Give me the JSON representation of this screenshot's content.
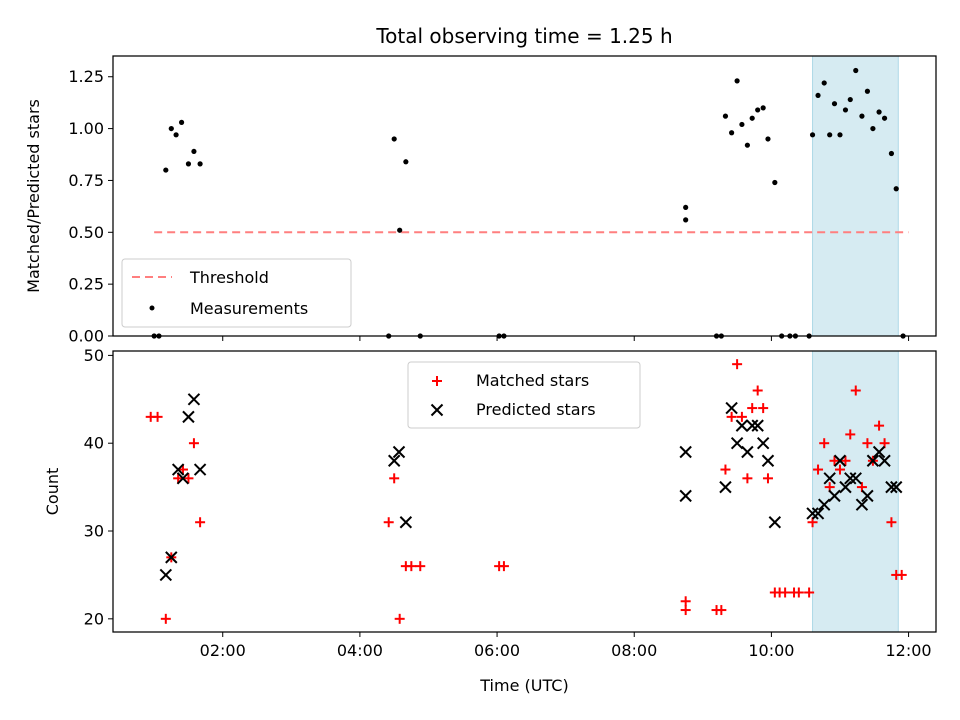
{
  "chart_data": [
    {
      "type": "scatter",
      "title": "Total observing time = 1.25 h",
      "xlabel": "",
      "ylabel": "Matched/Predicted stars",
      "xlim": [
        0.4,
        12.4
      ],
      "ylim": [
        0,
        1.35
      ],
      "yticks": [
        0.0,
        0.25,
        0.5,
        0.75,
        1.0,
        1.25
      ],
      "ytick_labels": [
        "0.00",
        "0.25",
        "0.50",
        "0.75",
        "1.00",
        "1.25"
      ],
      "shaded_span": [
        10.6,
        11.85
      ],
      "threshold": {
        "name": "Threshold",
        "value": 0.5,
        "x": [
          1.0,
          12.0
        ],
        "color": "#ff7f7f"
      },
      "series": [
        {
          "name": "Measurements",
          "color": "#000000",
          "points": [
            [
              1.0,
              0.0
            ],
            [
              1.07,
              0.0
            ],
            [
              1.17,
              0.8
            ],
            [
              1.25,
              1.0
            ],
            [
              1.32,
              0.97
            ],
            [
              1.4,
              1.03
            ],
            [
              1.5,
              0.83
            ],
            [
              1.58,
              0.89
            ],
            [
              1.67,
              0.83
            ],
            [
              4.42,
              0.0
            ],
            [
              4.5,
              0.95
            ],
            [
              4.58,
              0.51
            ],
            [
              4.67,
              0.84
            ],
            [
              4.88,
              0.0
            ],
            [
              6.03,
              0.0
            ],
            [
              6.1,
              0.0
            ],
            [
              8.75,
              0.62
            ],
            [
              8.75,
              0.56
            ],
            [
              9.2,
              0.0
            ],
            [
              9.27,
              0.0
            ],
            [
              9.33,
              1.06
            ],
            [
              9.42,
              0.98
            ],
            [
              9.5,
              1.23
            ],
            [
              9.57,
              1.02
            ],
            [
              9.65,
              0.92
            ],
            [
              9.72,
              1.05
            ],
            [
              9.8,
              1.09
            ],
            [
              9.88,
              1.1
            ],
            [
              9.95,
              0.95
            ],
            [
              10.05,
              0.74
            ],
            [
              10.15,
              0.0
            ],
            [
              10.27,
              0.0
            ],
            [
              10.35,
              0.0
            ],
            [
              10.55,
              0.0
            ],
            [
              10.6,
              0.97
            ],
            [
              10.68,
              1.16
            ],
            [
              10.77,
              1.22
            ],
            [
              10.85,
              0.97
            ],
            [
              10.92,
              1.12
            ],
            [
              11.0,
              0.97
            ],
            [
              11.08,
              1.09
            ],
            [
              11.15,
              1.14
            ],
            [
              11.23,
              1.28
            ],
            [
              11.32,
              1.06
            ],
            [
              11.4,
              1.18
            ],
            [
              11.48,
              1.0
            ],
            [
              11.57,
              1.08
            ],
            [
              11.65,
              1.05
            ],
            [
              11.75,
              0.88
            ],
            [
              11.82,
              0.71
            ],
            [
              11.92,
              0.0
            ]
          ]
        }
      ],
      "legend": {
        "placement": "lower-left"
      }
    },
    {
      "type": "scatter",
      "title": "",
      "xlabel": "Time (UTC)",
      "ylabel": "Count",
      "xlim": [
        0.4,
        12.4
      ],
      "ylim": [
        18.5,
        50.5
      ],
      "xticks": [
        2,
        4,
        6,
        8,
        10,
        12
      ],
      "xtick_labels": [
        "02:00",
        "04:00",
        "06:00",
        "08:00",
        "10:00",
        "12:00"
      ],
      "yticks": [
        20,
        30,
        40,
        50
      ],
      "ytick_labels": [
        "20",
        "30",
        "40",
        "50"
      ],
      "shaded_span": [
        10.6,
        11.85
      ],
      "series": [
        {
          "name": "Matched stars",
          "marker": "plus",
          "color": "#ff0000",
          "points": [
            [
              0.95,
              43
            ],
            [
              1.05,
              43
            ],
            [
              1.17,
              20
            ],
            [
              1.25,
              27
            ],
            [
              1.35,
              36
            ],
            [
              1.42,
              37
            ],
            [
              1.5,
              36
            ],
            [
              1.58,
              40
            ],
            [
              1.67,
              31
            ],
            [
              4.42,
              31
            ],
            [
              4.5,
              36
            ],
            [
              4.58,
              20
            ],
            [
              4.67,
              26
            ],
            [
              4.75,
              26
            ],
            [
              4.88,
              26
            ],
            [
              6.03,
              26
            ],
            [
              6.1,
              26
            ],
            [
              8.75,
              21
            ],
            [
              8.75,
              22
            ],
            [
              9.2,
              21
            ],
            [
              9.27,
              21
            ],
            [
              9.33,
              37
            ],
            [
              9.42,
              43
            ],
            [
              9.5,
              49
            ],
            [
              9.57,
              43
            ],
            [
              9.65,
              36
            ],
            [
              9.72,
              44
            ],
            [
              9.8,
              46
            ],
            [
              9.88,
              44
            ],
            [
              9.95,
              36
            ],
            [
              10.05,
              23
            ],
            [
              10.12,
              23
            ],
            [
              10.2,
              23
            ],
            [
              10.33,
              23
            ],
            [
              10.4,
              23
            ],
            [
              10.55,
              23
            ],
            [
              10.6,
              31
            ],
            [
              10.68,
              37
            ],
            [
              10.77,
              40
            ],
            [
              10.85,
              35
            ],
            [
              10.92,
              38
            ],
            [
              11.0,
              37
            ],
            [
              11.08,
              38
            ],
            [
              11.15,
              41
            ],
            [
              11.23,
              46
            ],
            [
              11.32,
              35
            ],
            [
              11.4,
              40
            ],
            [
              11.48,
              38
            ],
            [
              11.57,
              42
            ],
            [
              11.65,
              40
            ],
            [
              11.75,
              31
            ],
            [
              11.82,
              25
            ],
            [
              11.9,
              25
            ]
          ]
        },
        {
          "name": "Predicted stars",
          "marker": "x",
          "color": "#000000",
          "points": [
            [
              1.17,
              25
            ],
            [
              1.25,
              27
            ],
            [
              1.35,
              37
            ],
            [
              1.42,
              36
            ],
            [
              1.5,
              43
            ],
            [
              1.58,
              45
            ],
            [
              1.67,
              37
            ],
            [
              4.5,
              38
            ],
            [
              4.57,
              39
            ],
            [
              4.67,
              31
            ],
            [
              8.75,
              39
            ],
            [
              8.75,
              34
            ],
            [
              9.33,
              35
            ],
            [
              9.42,
              44
            ],
            [
              9.5,
              40
            ],
            [
              9.57,
              42
            ],
            [
              9.65,
              39
            ],
            [
              9.72,
              42
            ],
            [
              9.8,
              42
            ],
            [
              9.88,
              40
            ],
            [
              9.95,
              38
            ],
            [
              10.05,
              31
            ],
            [
              10.6,
              32
            ],
            [
              10.68,
              32
            ],
            [
              10.77,
              33
            ],
            [
              10.85,
              36
            ],
            [
              10.92,
              34
            ],
            [
              11.0,
              38
            ],
            [
              11.08,
              35
            ],
            [
              11.15,
              36
            ],
            [
              11.23,
              36
            ],
            [
              11.32,
              33
            ],
            [
              11.4,
              34
            ],
            [
              11.48,
              38
            ],
            [
              11.57,
              39
            ],
            [
              11.65,
              38
            ],
            [
              11.75,
              35
            ],
            [
              11.82,
              35
            ]
          ]
        }
      ],
      "legend": {
        "placement": "upper-center"
      }
    }
  ],
  "colors": {
    "span_fill": "#add8e6",
    "threshold": "#ff7f7f",
    "matched": "#ff0000",
    "predicted": "#000000"
  }
}
